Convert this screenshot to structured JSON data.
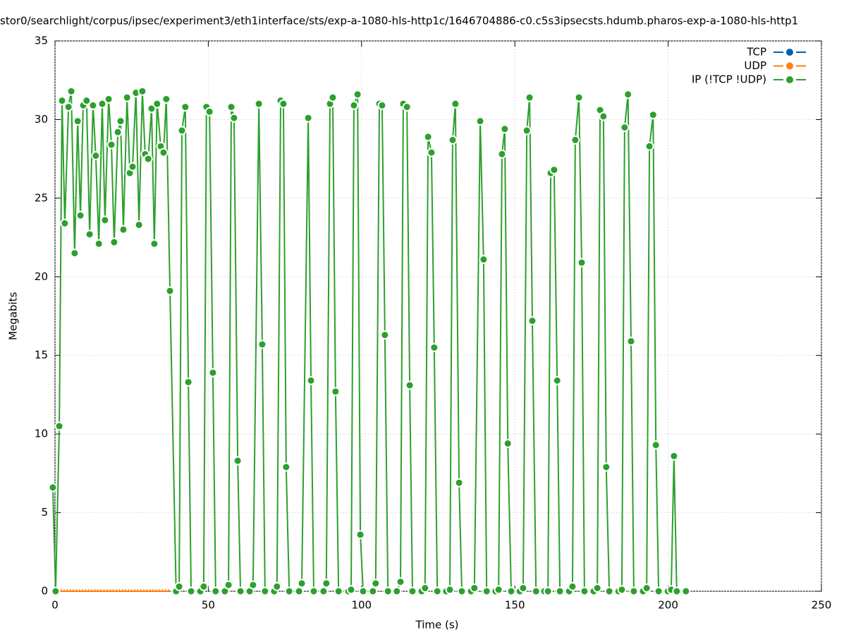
{
  "chart_data": {
    "type": "line",
    "title": "stor0/searchlight/corpus/ipsec/experiment3/eth1interface/sts/exp-a-1080-hls-http1c/1646704886-c0.c5s3ipsecsts.hdumb.pharos-exp-a-1080-hls-http1",
    "x_label": "Time (s)",
    "y_label": "Megabits",
    "xlim": [
      0,
      250
    ],
    "xticks": [
      0,
      50,
      100,
      150,
      200,
      250
    ],
    "ylim": [
      0,
      35
    ],
    "yticks": [
      0,
      5,
      10,
      15,
      20,
      25,
      30,
      35
    ],
    "grid": true,
    "legend": "top-right",
    "series": [
      {
        "name": "TCP",
        "color": "#0060ad",
        "x": [],
        "values": []
      },
      {
        "name": "UDP",
        "color": "#ff7f0e",
        "x": [
          0,
          1,
          2,
          3,
          4,
          5,
          6,
          7,
          8,
          9,
          10,
          11,
          12,
          13,
          14,
          15,
          16,
          17,
          18,
          19,
          20,
          21,
          22,
          23,
          24,
          25,
          26,
          27,
          28,
          29,
          30,
          31,
          32,
          33,
          34,
          35,
          36,
          37
        ],
        "values": [
          0,
          0,
          0,
          0,
          0,
          0,
          0,
          0,
          0,
          0,
          0,
          0,
          0,
          0,
          0,
          0,
          0,
          0,
          0,
          0,
          0,
          0,
          0,
          0,
          0,
          0,
          0,
          0,
          0,
          0,
          0,
          0,
          0,
          0,
          0,
          0,
          0,
          0
        ]
      },
      {
        "name": "IP (!TCP  !UDP)",
        "color": "#2ca02c",
        "x": [
          -0.7,
          0.2,
          1.4,
          2.3,
          3.2,
          4.4,
          5.3,
          6.4,
          7.4,
          8.3,
          9.2,
          10.3,
          11.3,
          12.4,
          13.3,
          14.3,
          15.4,
          16.3,
          17.5,
          18.4,
          19.3,
          20.5,
          21.4,
          22.3,
          23.5,
          24.4,
          25.3,
          26.4,
          27.4,
          28.5,
          29.4,
          30.4,
          31.5,
          32.4,
          33.3,
          34.5,
          35.4,
          36.3,
          37.5,
          39.5,
          40.5,
          41.4,
          42.5,
          43.5,
          44.4,
          47.4,
          48.5,
          49.4,
          50.4,
          51.5,
          52.4,
          55.4,
          56.6,
          57.5,
          58.4,
          59.6,
          60.5,
          63.5,
          64.6,
          66.5,
          67.6,
          68.5,
          71.5,
          72.4,
          73.6,
          74.5,
          75.4,
          76.4,
          79.6,
          80.5,
          82.6,
          83.5,
          84.4,
          87.6,
          88.5,
          89.7,
          90.6,
          91.5,
          92.5,
          95.7,
          96.6,
          97.5,
          98.7,
          99.6,
          100.5,
          103.7,
          104.6,
          105.8,
          106.7,
          107.6,
          108.6,
          111.5,
          112.7,
          113.6,
          114.8,
          115.7,
          116.6,
          119.6,
          120.7,
          121.7,
          122.8,
          123.7,
          124.7,
          127.6,
          128.8,
          129.7,
          130.6,
          131.8,
          132.7,
          135.7,
          136.8,
          138.7,
          139.8,
          140.8,
          143.7,
          144.7,
          145.8,
          146.7,
          147.7,
          148.8,
          151.6,
          152.7,
          153.9,
          154.8,
          155.7,
          156.9,
          159.6,
          160.8,
          161.7,
          162.8,
          163.8,
          164.7,
          167.7,
          168.8,
          169.7,
          170.9,
          171.8,
          172.7,
          175.7,
          176.9,
          177.8,
          178.9,
          179.8,
          180.8,
          183.8,
          184.9,
          185.8,
          186.9,
          187.9,
          188.8,
          191.8,
          193.0,
          193.9,
          195.1,
          196.0,
          196.9,
          199.9,
          201.0,
          201.9,
          202.8,
          205.8
        ],
        "values": [
          6.6,
          0,
          10.5,
          31.2,
          23.4,
          30.8,
          31.8,
          21.5,
          29.9,
          23.9,
          30.9,
          31.2,
          22.7,
          30.9,
          27.7,
          22.1,
          31.0,
          23.6,
          31.3,
          28.4,
          22.2,
          29.2,
          29.9,
          23.0,
          31.4,
          26.6,
          27.0,
          31.7,
          23.3,
          31.8,
          27.8,
          27.5,
          30.7,
          22.1,
          31.0,
          28.3,
          27.9,
          31.3,
          19.1,
          0,
          0.3,
          29.3,
          30.8,
          13.3,
          0,
          0,
          0.3,
          30.8,
          30.5,
          13.9,
          0,
          0,
          0.4,
          30.8,
          30.1,
          8.3,
          0,
          0,
          0.4,
          31.0,
          15.7,
          0,
          0,
          0.3,
          31.2,
          31.0,
          7.9,
          0,
          0,
          0.5,
          30.1,
          13.4,
          0,
          0,
          0.5,
          31.0,
          31.4,
          12.7,
          0,
          0,
          0.1,
          30.9,
          31.6,
          3.6,
          0,
          0,
          0.5,
          31.0,
          30.9,
          16.3,
          0,
          0,
          0.6,
          31.0,
          30.8,
          13.1,
          0,
          0,
          0.2,
          28.9,
          27.9,
          15.5,
          0,
          0,
          0.1,
          28.7,
          31.0,
          6.9,
          0,
          0,
          0.2,
          29.9,
          21.1,
          0,
          0,
          0.1,
          27.8,
          29.4,
          9.4,
          0,
          0,
          0.2,
          29.3,
          31.4,
          17.2,
          0,
          0,
          0,
          26.6,
          26.8,
          13.4,
          0,
          0,
          0.3,
          28.7,
          31.4,
          20.9,
          0,
          0,
          0.2,
          30.6,
          30.2,
          7.9,
          0,
          0,
          0.1,
          29.5,
          31.6,
          15.9,
          0,
          0,
          0.2,
          28.3,
          30.3,
          9.3,
          0,
          0,
          0.1,
          8.6,
          0,
          0
        ]
      }
    ]
  }
}
